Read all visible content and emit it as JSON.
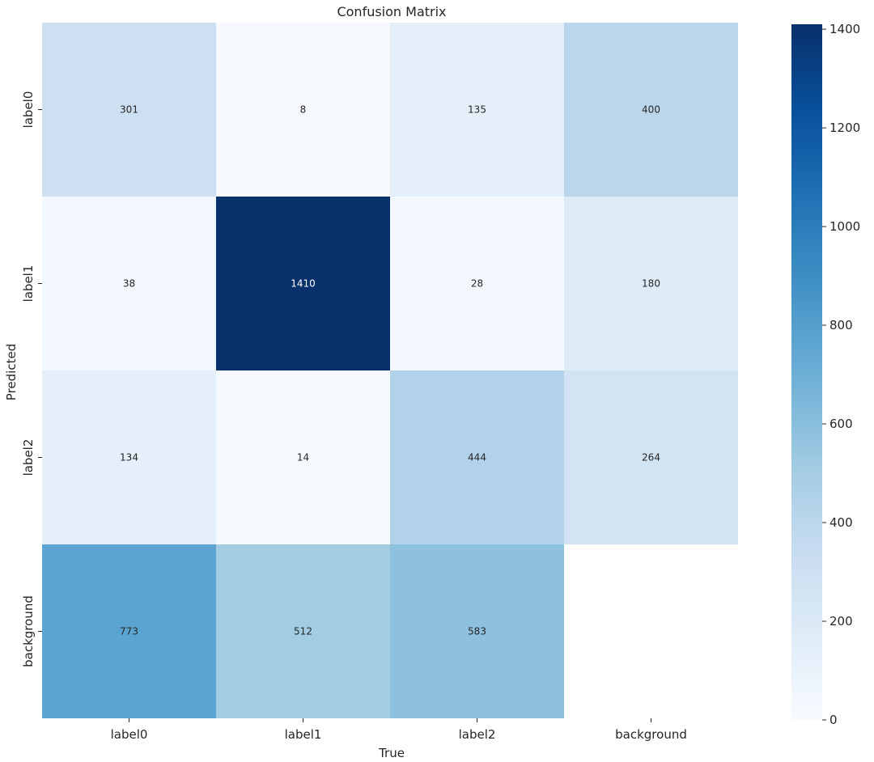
{
  "chart_data": {
    "type": "heatmap",
    "title": "Confusion Matrix",
    "xlabel": "True",
    "ylabel": "Predicted",
    "x_categories": [
      "label0",
      "label1",
      "label2",
      "background"
    ],
    "y_categories": [
      "label0",
      "label1",
      "label2",
      "background"
    ],
    "values": [
      [
        301,
        8,
        135,
        400
      ],
      [
        38,
        1410,
        28,
        180
      ],
      [
        134,
        14,
        444,
        264
      ],
      [
        773,
        512,
        583,
        null
      ]
    ],
    "value_labels": [
      [
        "301",
        "8",
        "135",
        "400"
      ],
      [
        "38",
        "1410",
        "28",
        "180"
      ],
      [
        "134",
        "14",
        "444",
        "264"
      ],
      [
        "773",
        "512",
        "583",
        ""
      ]
    ],
    "colormap": "Blues",
    "colormap_stops": [
      "#f7fbff",
      "#deebf7",
      "#c6dbef",
      "#9ecae1",
      "#6baed6",
      "#4292c6",
      "#2171b5",
      "#08519c",
      "#08306b"
    ],
    "value_range": [
      0,
      1410
    ],
    "colorbar": {
      "ticks": [
        0,
        200,
        400,
        600,
        800,
        1000,
        1200,
        1400
      ],
      "tick_labels": [
        "0",
        "200",
        "400",
        "600",
        "800",
        "1000",
        "1200",
        "1400"
      ]
    },
    "grid": false,
    "legend": "colorbar-right"
  }
}
